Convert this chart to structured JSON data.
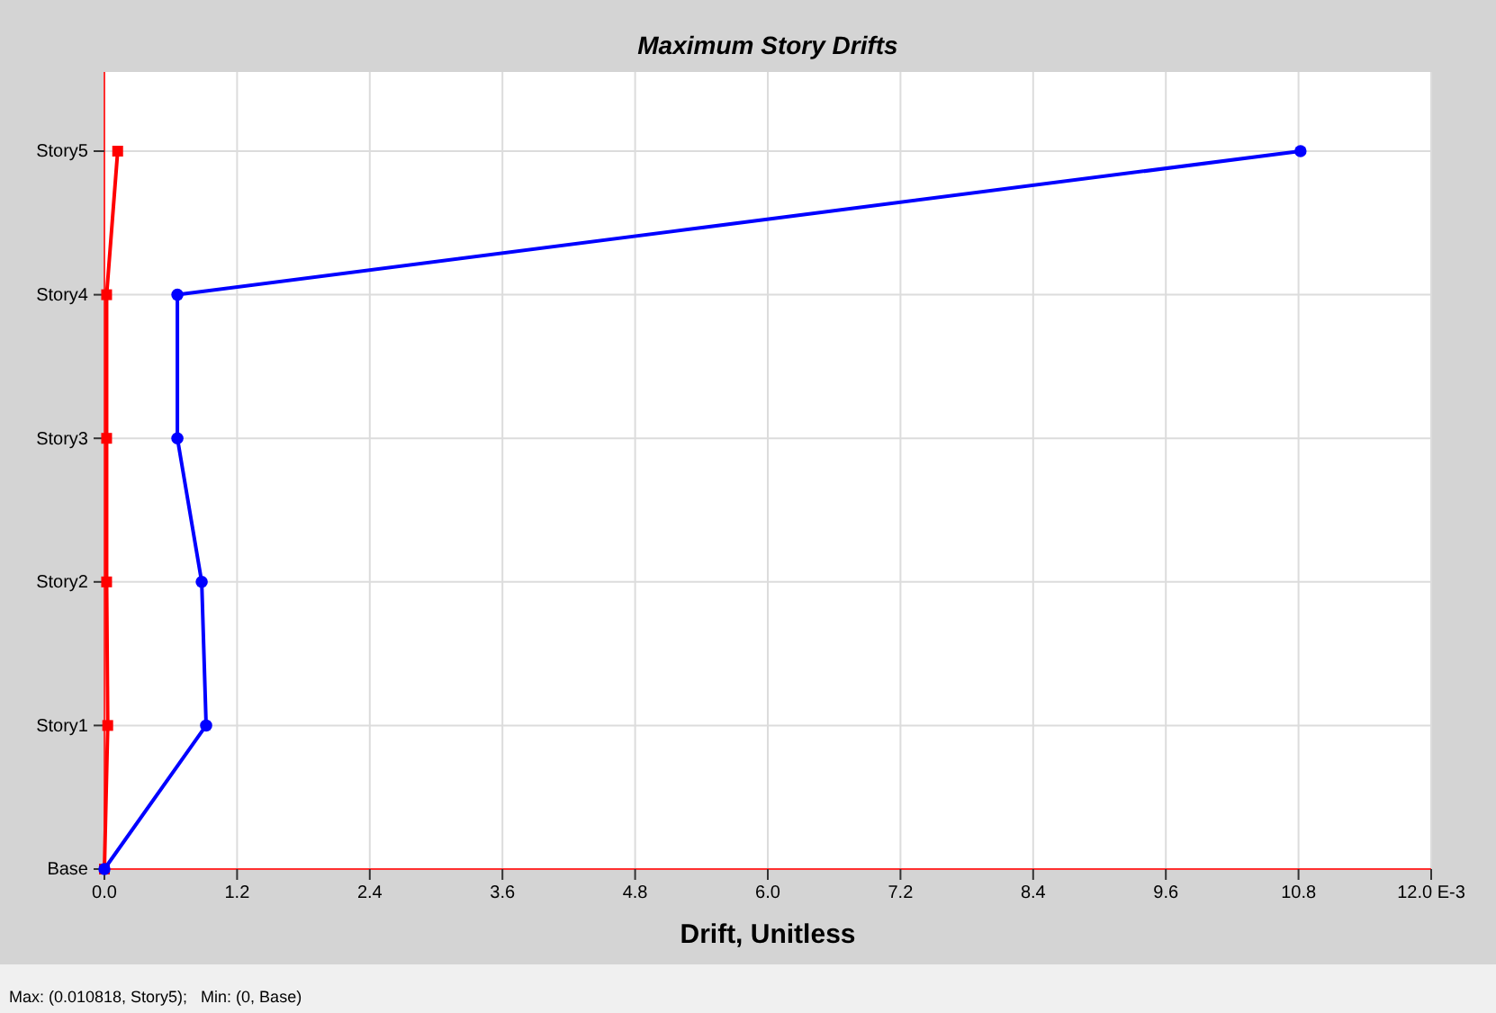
{
  "chart_data": {
    "type": "line",
    "orientation": "horizontal",
    "title": "Maximum Story Drifts",
    "xlabel": "Drift, Unitless",
    "annotations": [
      "Max: (0.010818, Story5);   Min: (0, Base)"
    ],
    "xlim": [
      0,
      12
    ],
    "xticks": [
      {
        "value": 0,
        "label": "0.0"
      },
      {
        "value": 1.2,
        "label": "1.2"
      },
      {
        "value": 2.4,
        "label": "2.4"
      },
      {
        "value": 3.6,
        "label": "3.6"
      },
      {
        "value": 4.8,
        "label": "4.8"
      },
      {
        "value": 6,
        "label": "6.0"
      },
      {
        "value": 7.2,
        "label": "7.2"
      },
      {
        "value": 8.4,
        "label": "8.4"
      },
      {
        "value": 9.6,
        "label": "9.6"
      },
      {
        "value": 10.8,
        "label": "10.8"
      },
      {
        "value": 12,
        "label": "12.0 E-3"
      }
    ],
    "categories": [
      "Story5",
      "Story4",
      "Story3",
      "Story2",
      "Story1",
      "Base"
    ],
    "grid": true,
    "marker": "circle",
    "line_style": "solid",
    "series": [
      {
        "color": "#ff0000",
        "marker": "square",
        "values": [
          0.12,
          0.02,
          0.02,
          0.02,
          0.03,
          0
        ]
      },
      {
        "color": "#0000ff",
        "values": [
          10.818,
          0.66,
          0.66,
          0.88,
          0.92,
          0
        ]
      }
    ]
  }
}
